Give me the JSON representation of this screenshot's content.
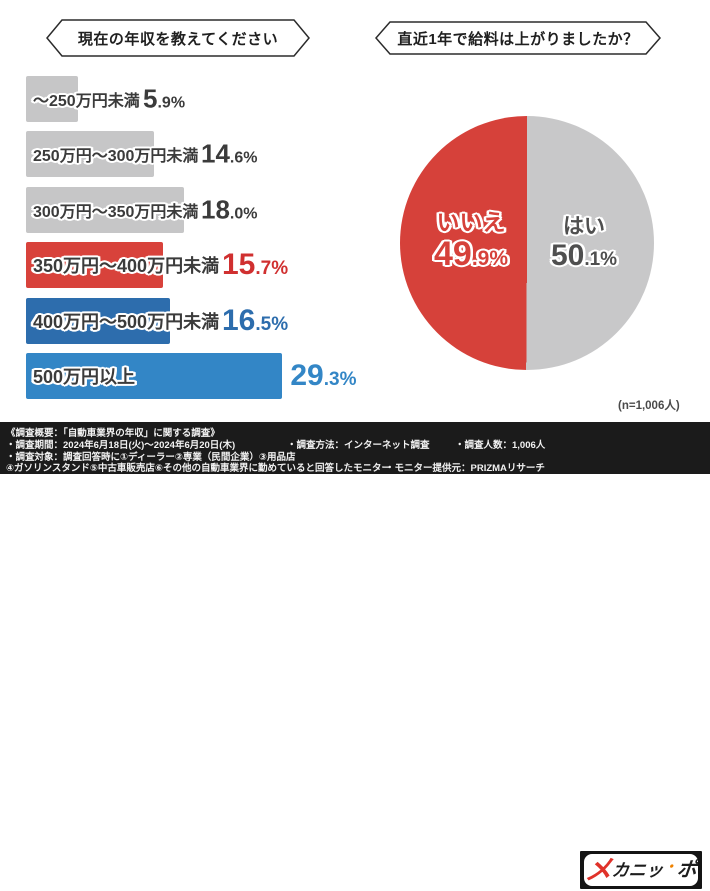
{
  "chart_data": [
    {
      "type": "bar",
      "orientation": "horizontal",
      "title": "現在の年収を教えてください",
      "unit": "%",
      "categories": [
        "～250万円未満",
        "250万円～300万円未満",
        "300万円～350万円未満",
        "350万円～400万円未満",
        "400万円～500万円未満",
        "500万円以上"
      ],
      "values": [
        5.9,
        14.6,
        18.0,
        15.7,
        16.5,
        29.3
      ],
      "bar_colors": [
        "#c6c6c7",
        "#c6c6c7",
        "#c6c6c7",
        "#d8423b",
        "#2d6dad",
        "#3386c6"
      ],
      "pct_colors": [
        "#3b3b3b",
        "#3b3b3b",
        "#3b3b3b",
        "#d03030",
        "#2d6dad",
        "#3386c6"
      ],
      "emphasis": [
        false,
        false,
        false,
        true,
        true,
        true
      ],
      "xlim": [
        0,
        30
      ],
      "grid": false,
      "legend": "none"
    },
    {
      "type": "pie",
      "title": "直近1年で給料は上がりましたか？",
      "slices": [
        {
          "label": "はい",
          "value": 50.1,
          "color": "#c8c8c9"
        },
        {
          "label": "いいえ",
          "value": 49.9,
          "color": "#d6413a"
        }
      ],
      "start": "12 o'clock, clockwise, はい first",
      "note": "(n=1,006人)"
    }
  ],
  "footer": {
    "line1": "《調査概要：「自動車業界の年収」に関する調査》",
    "period": "・調査期間：2024年6月18日(火)～2024年6月20日(木)",
    "method": "・調査方法：インターネット調査",
    "count": "・調査人数：1,006人",
    "target1": "・調査対象：調査回答時に①ディーラー②専業（民間企業）③用品店",
    "target2": "④ガソリンスタンド⑤中古車販売店⑥その他の自動車業界に勤めていると回答したモニター",
    "provider": "・モニター提供元：PRIZMAリサーチ",
    "logo": {
      "p1": "メ",
      "p2": "カニッ",
      "dot": "・",
      "p3": "ポ"
    }
  }
}
